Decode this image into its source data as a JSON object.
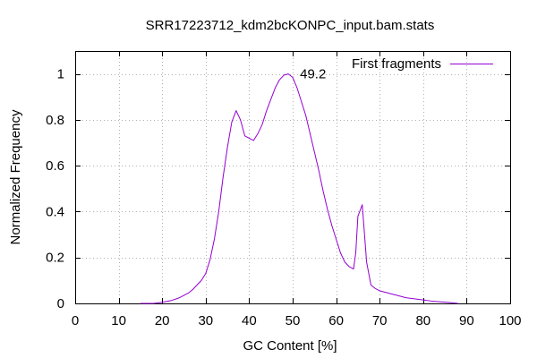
{
  "chart_data": {
    "type": "line",
    "title": "SRR17223712_kdm2bcKONPC_input.bam.stats",
    "xlabel": "GC Content [%]",
    "ylabel": "Normalized Frequency",
    "xlim": [
      0,
      100
    ],
    "ylim": [
      0,
      1.1
    ],
    "x_ticks": [
      0,
      10,
      20,
      30,
      40,
      50,
      60,
      70,
      80,
      90,
      100
    ],
    "y_ticks": [
      0,
      0.2,
      0.4,
      0.6,
      0.8,
      1
    ],
    "x_tick_labels": [
      "0",
      "10",
      "20",
      "30",
      "40",
      "50",
      "60",
      "70",
      "80",
      "90",
      "100"
    ],
    "y_tick_labels": [
      "0",
      "0.2",
      "0.4",
      "0.6",
      "0.8",
      "1"
    ],
    "grid": true,
    "legend_position": "top-right",
    "series": [
      {
        "name": "First fragments",
        "color": "#9400d3",
        "x": [
          15,
          18,
          20,
          22,
          24,
          26,
          27,
          28,
          29,
          30,
          31,
          32,
          33,
          34,
          35,
          36,
          37,
          38,
          39,
          40,
          41,
          42,
          43,
          44,
          45,
          46,
          47,
          48,
          49,
          50,
          51,
          52,
          53,
          54,
          55,
          56,
          57,
          58,
          59,
          60,
          61,
          62,
          63,
          64,
          64.5,
          65,
          66,
          67,
          68,
          69,
          70,
          72,
          74,
          76,
          78,
          80,
          82,
          84,
          86,
          88
        ],
        "y": [
          0.0,
          0.0,
          0.005,
          0.012,
          0.025,
          0.045,
          0.06,
          0.08,
          0.1,
          0.13,
          0.19,
          0.28,
          0.4,
          0.55,
          0.68,
          0.79,
          0.84,
          0.8,
          0.73,
          0.72,
          0.71,
          0.74,
          0.78,
          0.84,
          0.89,
          0.94,
          0.975,
          0.995,
          1.0,
          0.985,
          0.94,
          0.88,
          0.82,
          0.74,
          0.66,
          0.58,
          0.49,
          0.41,
          0.34,
          0.28,
          0.22,
          0.18,
          0.16,
          0.15,
          0.22,
          0.38,
          0.43,
          0.18,
          0.08,
          0.065,
          0.055,
          0.045,
          0.035,
          0.025,
          0.02,
          0.015,
          0.01,
          0.007,
          0.004,
          0.0
        ]
      }
    ],
    "annotations": [
      {
        "text": "49.2",
        "x": 49.2,
        "y": 1.0
      }
    ]
  }
}
